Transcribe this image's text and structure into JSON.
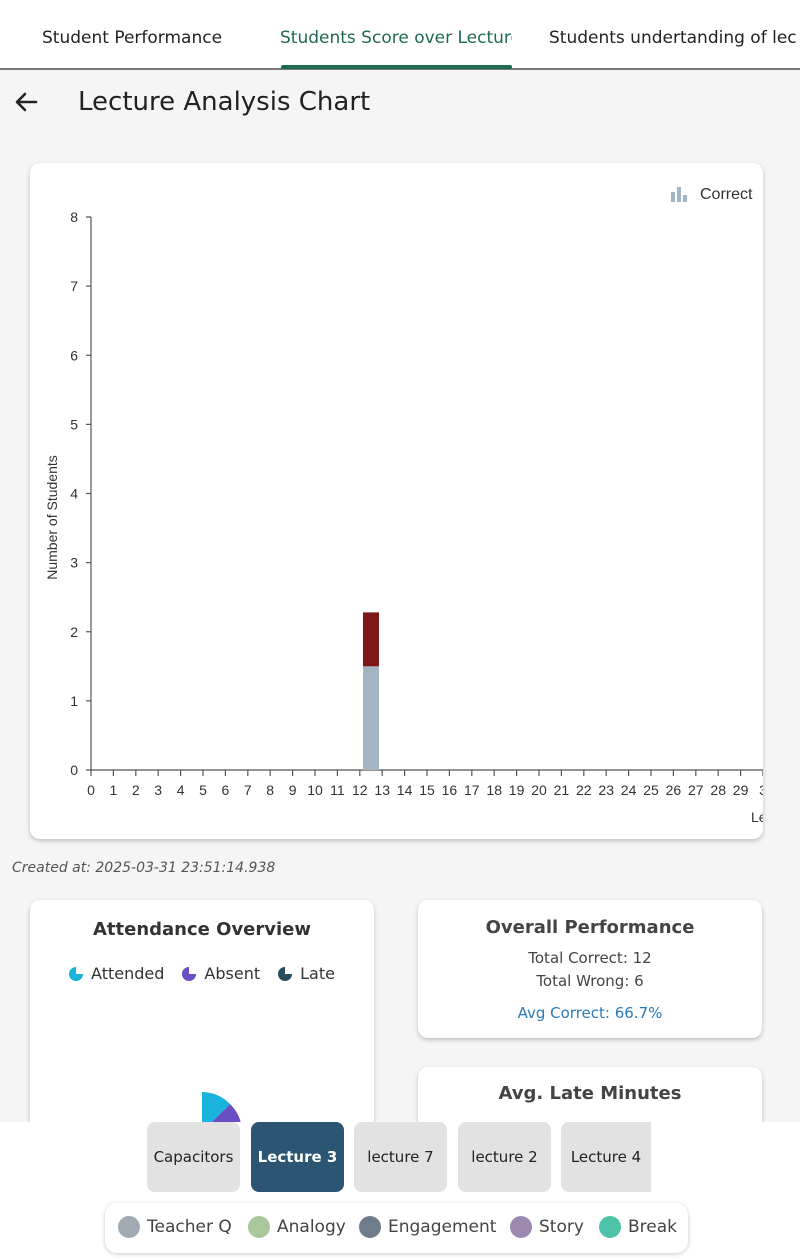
{
  "tabs": [
    {
      "label": "Student Performance"
    },
    {
      "label": "Students Score over Lecture"
    },
    {
      "label": "Students undertanding of lec"
    }
  ],
  "header": {
    "title": "Lecture Analysis Chart",
    "back_icon": "arrow-left-icon"
  },
  "chart_data": {
    "type": "bar",
    "stacked": true,
    "ylabel": "Number of Students",
    "xlabel": "Le",
    "ylim": [
      0,
      8
    ],
    "yticks": [
      0,
      1,
      2,
      3,
      4,
      5,
      6,
      7,
      8
    ],
    "xticks": [
      "0",
      "1",
      "2",
      "3",
      "4",
      "5",
      "6",
      "7",
      "8",
      "9",
      "10",
      "11",
      "12",
      "13",
      "14",
      "15",
      "16",
      "17",
      "18",
      "19",
      "20",
      "21",
      "22",
      "23",
      "24",
      "25",
      "26",
      "27",
      "28",
      "29",
      "3"
    ],
    "legend": {
      "position": "top-right",
      "label": "Correct"
    },
    "series": [
      {
        "name": "Correct",
        "color": "#a3b4c2",
        "x": [
          12.5
        ],
        "values": [
          1.5
        ]
      },
      {
        "color": "#7d1718",
        "x": [
          12.5
        ],
        "values": [
          0.78
        ]
      }
    ]
  },
  "created_at": "Created at: 2025-03-31 23:51:14.938",
  "attendance": {
    "title": "Attendance Overview",
    "legend": [
      {
        "label": "Attended",
        "color": "#1ab3dc"
      },
      {
        "label": "Absent",
        "color": "#6a4ec4"
      },
      {
        "label": "Late",
        "color": "#284d5e"
      }
    ]
  },
  "performance": {
    "title": "Overall Performance",
    "total_correct": "Total Correct: 12",
    "total_wrong": "Total Wrong: 6",
    "avg_correct": "Avg Correct: 66.7%"
  },
  "late_minutes": {
    "title": "Avg. Late Minutes"
  },
  "lectures": [
    {
      "label": "Capacitors",
      "active": false
    },
    {
      "label": "Lecture 3",
      "active": true
    },
    {
      "label": "lecture 7",
      "active": false
    },
    {
      "label": "lecture 2",
      "active": false
    },
    {
      "label": "Lecture 4",
      "active": false
    }
  ],
  "tags": [
    {
      "label": "Teacher Q",
      "color": "#a2aab3"
    },
    {
      "label": "Analogy",
      "color": "#a9c79b"
    },
    {
      "label": "Engagement",
      "color": "#6f7c8c"
    },
    {
      "label": "Story",
      "color": "#9d89ad"
    },
    {
      "label": "Break",
      "color": "#4dc3a9"
    }
  ]
}
